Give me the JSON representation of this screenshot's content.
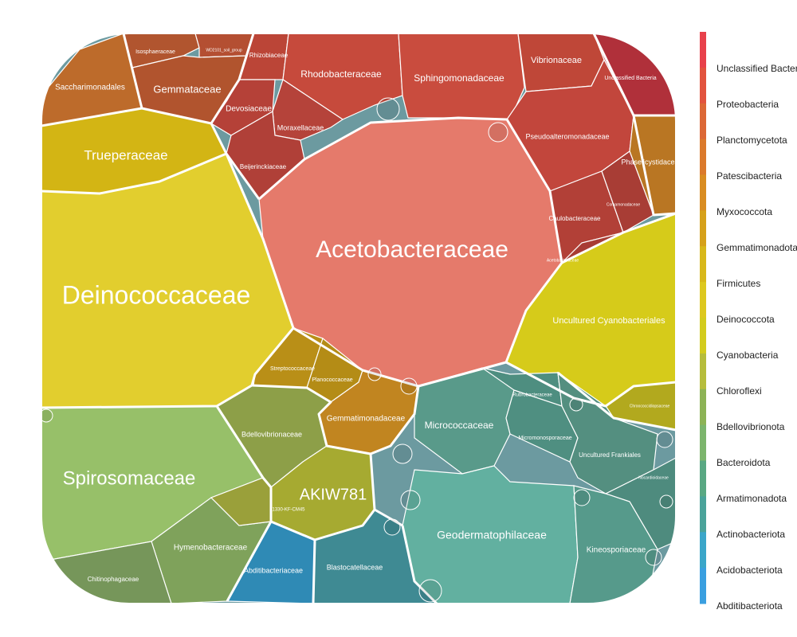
{
  "chart_data": {
    "type": "treemap",
    "legend": {
      "labels": [
        "Unclassified Bacteria",
        "Proteobacteria",
        "Planctomycetota",
        "Patescibacteria",
        "Myxococcota",
        "Gemmatimonadota",
        "Firmicutes",
        "Deinococcota",
        "Cyanobacteria",
        "Chloroflexi",
        "Bdellovibrionota",
        "Bacteroidota",
        "Armatimonadota",
        "Actinobacteriota",
        "Acidobacteriota",
        "Abditibacteriota"
      ],
      "colors": [
        "#e8414b",
        "#e2533e",
        "#dc6836",
        "#db7a2c",
        "#d98d22",
        "#d6a11a",
        "#d8b81a",
        "#ddc81f",
        "#d3cc1e",
        "#b6bd3c",
        "#8db356",
        "#7cb56d",
        "#59a883",
        "#4aa39a",
        "#3ba6c9",
        "#3a9fe0"
      ]
    },
    "cells": [
      {
        "name": "Acetobacteraceae",
        "phylum": "Proteobacteria",
        "color": "#e57a6b"
      },
      {
        "name": "Deinococcaceae",
        "phylum": "Deinococcota",
        "color": "#e2ce2e"
      },
      {
        "name": "Spirosomaceae",
        "phylum": "Bacteroidota",
        "color": "#97c069"
      },
      {
        "name": "Trueperaceae",
        "phylum": "Deinococcota",
        "color": "#d3b514"
      },
      {
        "name": "Saccharimonadales",
        "phylum": "Patescibacteria",
        "color": "#bd6b2b"
      },
      {
        "name": "Isosphaeraceae",
        "phylum": "Planctomycetota",
        "color": "#b1552f"
      },
      {
        "name": "WD2101_soil_group",
        "phylum": "Planctomycetota",
        "color": "#b44f32"
      },
      {
        "name": "Gemmataceae",
        "phylum": "Planctomycetota",
        "color": "#b1542e"
      },
      {
        "name": "Rhizobiaceae",
        "phylum": "Proteobacteria",
        "color": "#bb4537"
      },
      {
        "name": "Devosiaceae",
        "phylum": "Proteobacteria",
        "color": "#b54138"
      },
      {
        "name": "Rhodobacteraceae",
        "phylum": "Proteobacteria",
        "color": "#c64a3c"
      },
      {
        "name": "Sphingomonadaceae",
        "phylum": "Proteobacteria",
        "color": "#c94c3e"
      },
      {
        "name": "Vibrionaceae",
        "phylum": "Proteobacteria",
        "color": "#bf4738"
      },
      {
        "name": "Unclassified Bacteria",
        "phylum": "Unclassified Bacteria",
        "color": "#b0303a"
      },
      {
        "name": "Moraxellaceae",
        "phylum": "Proteobacteria",
        "color": "#b5433a"
      },
      {
        "name": "Beijerinckiaceae",
        "phylum": "Proteobacteria",
        "color": "#b04038"
      },
      {
        "name": "Pseudoalteromonadaceae",
        "phylum": "Proteobacteria",
        "color": "#c2463c"
      },
      {
        "name": "Phaselicystidaceae",
        "phylum": "Myxococcota",
        "color": "#b97623"
      },
      {
        "name": "Caulobacteraceae",
        "phylum": "Proteobacteria",
        "color": "#b24037"
      },
      {
        "name": "Comamonadaceae",
        "phylum": "Proteobacteria",
        "color": "#a83d35"
      },
      {
        "name": "Acetobacteraceae-small",
        "phylum": "Proteobacteria",
        "color": "#a83c34"
      },
      {
        "name": "Uncultured Cyanobacteriales",
        "phylum": "Cyanobacteria",
        "color": "#d6cb1a"
      },
      {
        "name": "Chroococcidiopsaceae",
        "phylum": "Cyanobacteria",
        "color": "#b2a91e"
      },
      {
        "name": "Streptococcaceae",
        "phylum": "Firmicutes",
        "color": "#b98f17"
      },
      {
        "name": "Planococcaceae",
        "phylum": "Firmicutes",
        "color": "#b48c16"
      },
      {
        "name": "Gemmatimonadaceae",
        "phylum": "Gemmatimonadota",
        "color": "#c18520"
      },
      {
        "name": "Bdellovibrionaceae",
        "phylum": "Bdellovibrionota",
        "color": "#8d9f48"
      },
      {
        "name": "AKIW781",
        "phylum": "Chloroflexi",
        "color": "#a6aa31"
      },
      {
        "name": "Hymenobacteraceae",
        "phylum": "Bacteroidota",
        "color": "#7fa25b"
      },
      {
        "name": "Chitinophagaceae",
        "phylum": "Bacteroidota",
        "color": "#76965a"
      },
      {
        "name": "Micrococcaceae",
        "phylum": "Actinobacteriota",
        "color": "#599a8a"
      },
      {
        "name": "Rubrobacteraceae",
        "phylum": "Actinobacteriota",
        "color": "#4e8e80"
      },
      {
        "name": "Micromonosporaceae",
        "phylum": "Actinobacteriota",
        "color": "#4f8f81"
      },
      {
        "name": "Uncultured Frankiales",
        "phylum": "Actinobacteriota",
        "color": "#548f80"
      },
      {
        "name": "Nocardioidaceae",
        "phylum": "Actinobacteriota",
        "color": "#4e8b7e"
      },
      {
        "name": "Geodermatophilaceae",
        "phylum": "Actinobacteriota",
        "color": "#62b0a0"
      },
      {
        "name": "Kineosporiaceae",
        "phylum": "Actinobacteriota",
        "color": "#569a8b"
      },
      {
        "name": "Abditibacteriaceae",
        "phylum": "Abditibacteriota",
        "color": "#2f8ab5"
      },
      {
        "name": "Blastocatellaceae",
        "phylum": "Acidobacteriota",
        "color": "#3f8a93"
      },
      {
        "name": "1330-KF-CM45",
        "phylum": "Chloroflexi",
        "color": "#9aa03a"
      }
    ]
  }
}
